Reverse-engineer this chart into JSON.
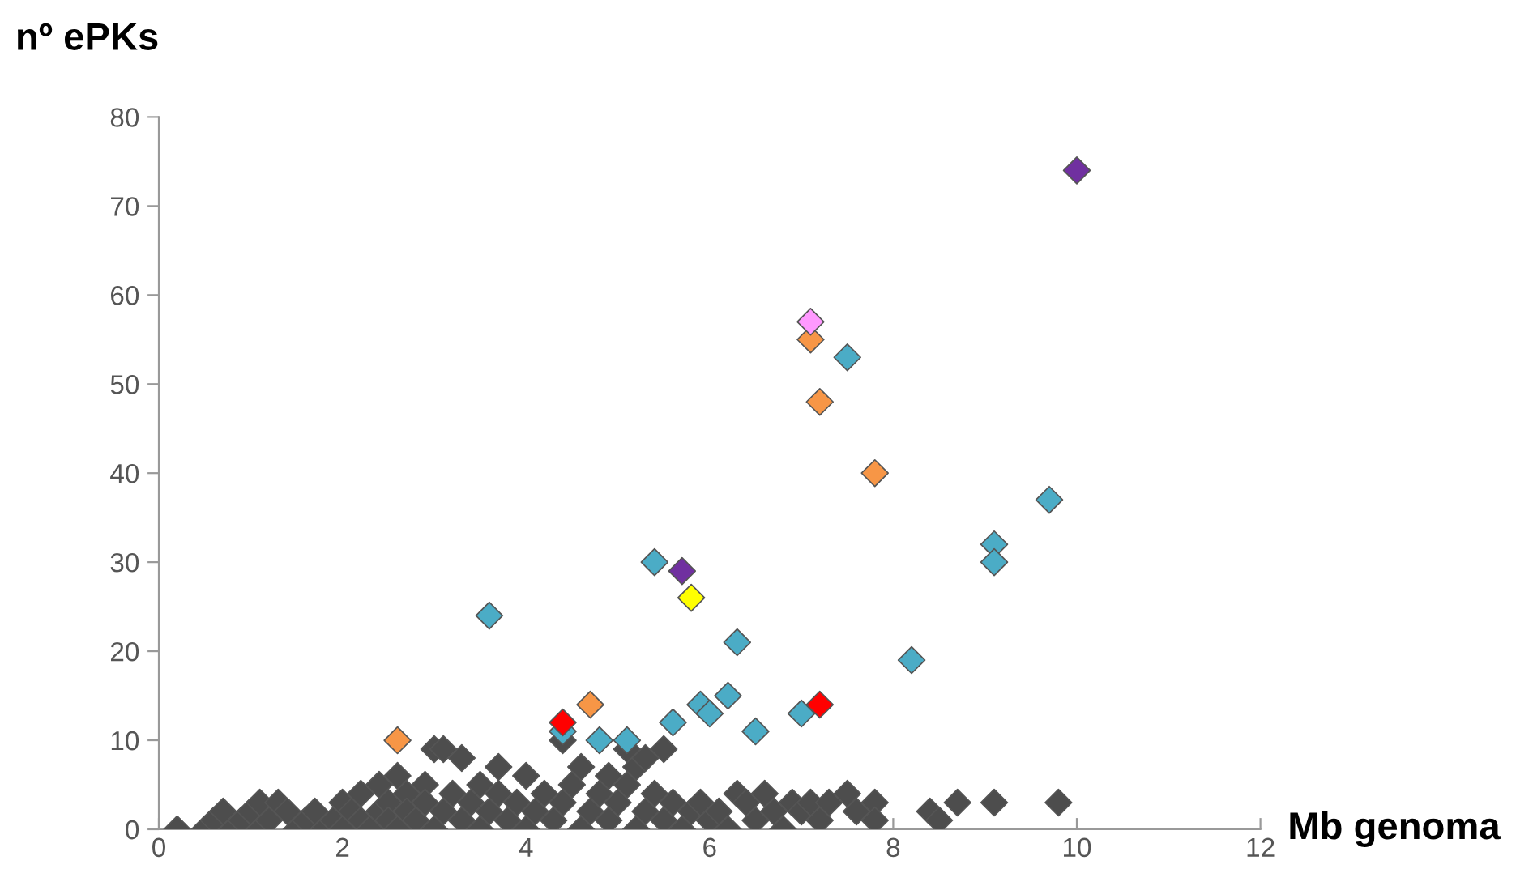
{
  "chart_data": {
    "type": "scatter",
    "xlabel": "Mb genoma",
    "ylabel": "nº ePKs",
    "xlim": [
      0,
      12
    ],
    "xticks": [
      0,
      2,
      4,
      6,
      8,
      10,
      12
    ],
    "ylim": [
      0,
      80
    ],
    "yticks": [
      0,
      10,
      20,
      30,
      40,
      50,
      60,
      70,
      80
    ],
    "marker": "diamond",
    "grid": false,
    "legend": false,
    "series": [
      {
        "color": "#4d4d4d",
        "x": [
          0.2,
          0.5,
          0.6,
          0.7,
          0.8,
          0.9,
          1.0,
          1.1,
          1.1,
          1.2,
          1.3,
          1.4,
          1.5,
          1.6,
          1.7,
          1.8,
          1.9,
          2.0,
          2.0,
          2.1,
          2.2,
          2.2,
          2.3,
          2.4,
          2.4,
          2.5,
          2.5,
          2.6,
          2.6,
          2.7,
          2.7,
          2.8,
          2.9,
          2.9,
          3.0,
          3.0,
          3.1,
          3.1,
          3.2,
          3.3,
          3.3,
          3.4,
          3.5,
          3.5,
          3.6,
          3.7,
          3.7,
          3.8,
          3.9,
          4.0,
          4.0,
          4.1,
          4.2,
          4.3,
          4.4,
          4.4,
          4.5,
          4.6,
          4.6,
          4.7,
          4.8,
          4.9,
          4.9,
          5.0,
          5.1,
          5.1,
          5.2,
          5.2,
          5.3,
          5.3,
          5.4,
          5.5,
          5.5,
          5.6,
          5.7,
          5.8,
          5.9,
          6.0,
          6.1,
          6.2,
          6.3,
          6.4,
          6.5,
          6.6,
          6.7,
          6.8,
          6.9,
          7.0,
          7.1,
          7.2,
          7.3,
          7.5,
          7.6,
          7.8,
          7.8,
          8.4,
          8.5,
          8.7,
          9.1,
          9.8
        ],
        "values": [
          0,
          0,
          1,
          2,
          0,
          1,
          2,
          3,
          0,
          1,
          3,
          2,
          0,
          1,
          2,
          0,
          1,
          3,
          0,
          2,
          4,
          1,
          0,
          5,
          2,
          3,
          1,
          6,
          0,
          4,
          2,
          1,
          5,
          3,
          9,
          0,
          9,
          2,
          4,
          8,
          1,
          3,
          5,
          0,
          2,
          7,
          4,
          1,
          3,
          6,
          0,
          2,
          4,
          1,
          10,
          3,
          5,
          7,
          0,
          2,
          4,
          6,
          1,
          3,
          9,
          5,
          0,
          7,
          8,
          2,
          4,
          9,
          1,
          3,
          0,
          2,
          3,
          1,
          2,
          0,
          4,
          3,
          1,
          4,
          2,
          0,
          3,
          2,
          3,
          1,
          3,
          4,
          2,
          3,
          1,
          2,
          1,
          3,
          3,
          3
        ]
      },
      {
        "color": "#4bacc6",
        "x": [
          7.5,
          9.7,
          9.1,
          9.1,
          5.4,
          8.2,
          6.3,
          3.6,
          4.4,
          4.8,
          5.1,
          5.6,
          5.9,
          6.0,
          6.2,
          6.5,
          7.0
        ],
        "values": [
          53,
          37,
          32,
          30,
          30,
          19,
          21,
          24,
          11,
          10,
          10,
          12,
          14,
          13,
          15,
          11,
          13
        ]
      },
      {
        "color": "#f79646",
        "x": [
          7.1,
          7.2,
          7.8,
          4.7,
          2.6
        ],
        "values": [
          55,
          48,
          40,
          14,
          10
        ]
      },
      {
        "color": "#ff0000",
        "x": [
          4.4,
          7.2
        ],
        "values": [
          12,
          14
        ]
      },
      {
        "color": "#7030a0",
        "x": [
          10.0,
          5.7
        ],
        "values": [
          74,
          29
        ]
      },
      {
        "color": "#ffff00",
        "x": [
          5.8
        ],
        "values": [
          26
        ]
      },
      {
        "color": "#ff99ff",
        "x": [
          7.1
        ],
        "values": [
          57
        ]
      }
    ]
  }
}
